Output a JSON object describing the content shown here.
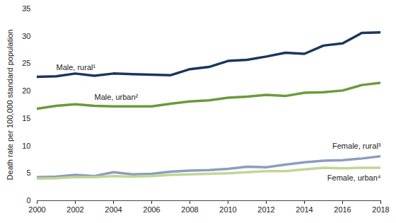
{
  "chart_data": {
    "type": "line",
    "y_label": "Death rate per 100,000 standard population",
    "x": [
      2000,
      2001,
      2002,
      2003,
      2004,
      2005,
      2006,
      2007,
      2008,
      2009,
      2010,
      2011,
      2012,
      2013,
      2014,
      2015,
      2016,
      2017,
      2018
    ],
    "series": [
      {
        "name": "Male, rural¹",
        "color": "#1b365d",
        "values": [
          22.6,
          22.7,
          23.2,
          22.8,
          23.2,
          23.1,
          23.0,
          22.9,
          24.0,
          24.4,
          25.5,
          25.7,
          26.3,
          27.0,
          26.8,
          28.3,
          28.7,
          30.6,
          30.7
        ]
      },
      {
        "name": "Male, urban²",
        "color": "#6b9a3a",
        "values": [
          16.8,
          17.3,
          17.6,
          17.3,
          17.2,
          17.2,
          17.2,
          17.7,
          18.1,
          18.3,
          18.8,
          19.0,
          19.3,
          19.1,
          19.7,
          19.8,
          20.1,
          21.1,
          21.5
        ]
      },
      {
        "name": "Female, rural³",
        "color": "#8c9dbf",
        "values": [
          4.3,
          4.4,
          4.7,
          4.5,
          5.2,
          4.8,
          4.9,
          5.3,
          5.5,
          5.6,
          5.8,
          6.2,
          6.1,
          6.6,
          7.0,
          7.3,
          7.4,
          7.7,
          8.1
        ]
      },
      {
        "name": "Female, urban⁴",
        "color": "#c2d695",
        "values": [
          4.0,
          4.1,
          4.3,
          4.3,
          4.5,
          4.4,
          4.5,
          4.7,
          4.8,
          4.9,
          5.0,
          5.2,
          5.4,
          5.4,
          5.7,
          6.0,
          5.9,
          6.0,
          6.0
        ]
      }
    ],
    "xlim": [
      2000,
      2018
    ],
    "xticks": [
      2000,
      2002,
      2004,
      2006,
      2008,
      2010,
      2012,
      2014,
      2016,
      2018
    ],
    "ylim": [
      0,
      35
    ],
    "yticks": [
      0,
      5,
      10,
      15,
      20,
      25,
      30,
      35
    ],
    "grid": false
  }
}
